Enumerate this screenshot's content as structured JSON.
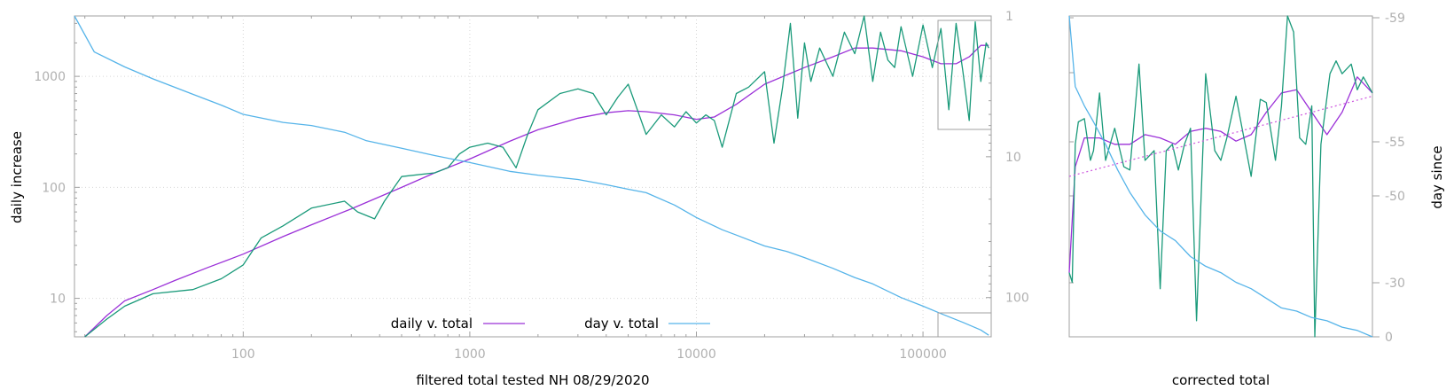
{
  "chart_data": [
    {
      "type": "line",
      "title": "",
      "xlabel": "filtered total tested NH 08/29/2020",
      "ylabel": "daily increase",
      "y2label": "",
      "x_scale": "log",
      "y_scale": "log",
      "y2_scale": "log-reversed",
      "xlim": [
        18,
        200000
      ],
      "ylim": [
        4.5,
        3500
      ],
      "y2lim": [
        1,
        190
      ],
      "x_ticks": [
        "100",
        "1000",
        "10000",
        "100000"
      ],
      "x_tick_values": [
        100,
        1000,
        10000,
        100000
      ],
      "y_ticks": [
        "10",
        "100",
        "1000"
      ],
      "y_tick_values": [
        10,
        100,
        1000
      ],
      "y2_ticks": [
        "1",
        "10",
        "100"
      ],
      "y2_tick_values": [
        1,
        10,
        100
      ],
      "grid": true,
      "legend_position": "bottom-center",
      "series": [
        {
          "name": "daily v. total",
          "color": "#9b30d8",
          "axis": "left",
          "x": [
            20,
            25,
            30,
            40,
            50,
            70,
            100,
            150,
            200,
            300,
            500,
            700,
            1000,
            1500,
            2000,
            3000,
            4000,
            5000,
            6000,
            8000,
            10000,
            12000,
            15000,
            20000,
            30000,
            40000,
            50000,
            60000,
            80000,
            100000,
            120000,
            140000,
            160000,
            180000,
            195000
          ],
          "values": [
            4.2,
            7,
            9.5,
            12,
            14.5,
            19,
            25,
            36,
            46,
            64,
            100,
            135,
            180,
            260,
            330,
            420,
            470,
            490,
            480,
            450,
            410,
            430,
            560,
            850,
            1200,
            1500,
            1800,
            1800,
            1700,
            1500,
            1300,
            1300,
            1500,
            1900,
            1900
          ]
        },
        {
          "name": "",
          "color": "#1a9a7a",
          "axis": "left",
          "x": [
            20,
            25,
            30,
            40,
            60,
            80,
            100,
            120,
            150,
            200,
            280,
            320,
            380,
            420,
            500,
            700,
            800,
            900,
            1000,
            1200,
            1400,
            1600,
            1800,
            2000,
            2500,
            3000,
            3500,
            4000,
            4500,
            5000,
            6000,
            7000,
            8000,
            9000,
            10000,
            11000,
            12000,
            13000,
            15000,
            17000,
            20000,
            22000,
            24000,
            26000,
            28000,
            30000,
            32000,
            35000,
            40000,
            45000,
            50000,
            55000,
            60000,
            65000,
            70000,
            75000,
            80000,
            90000,
            100000,
            110000,
            120000,
            130000,
            140000,
            150000,
            160000,
            170000,
            180000,
            190000,
            195000
          ],
          "values": [
            4.2,
            6.5,
            8.5,
            11,
            12,
            15,
            20,
            35,
            45,
            65,
            75,
            60,
            52,
            75,
            125,
            135,
            150,
            200,
            230,
            250,
            230,
            150,
            300,
            500,
            700,
            770,
            700,
            450,
            650,
            850,
            300,
            450,
            350,
            480,
            380,
            450,
            400,
            230,
            700,
            800,
            1100,
            250,
            800,
            3000,
            420,
            2000,
            900,
            1800,
            1000,
            2500,
            1600,
            3500,
            900,
            2500,
            1400,
            1200,
            2800,
            1000,
            2900,
            1200,
            2700,
            500,
            3000,
            1100,
            400,
            3100,
            900,
            2000,
            1800
          ]
        },
        {
          "name": "day v. total",
          "color": "#56b4e9",
          "axis": "right",
          "x": [
            18,
            22,
            30,
            40,
            60,
            80,
            100,
            150,
            200,
            280,
            350,
            500,
            700,
            1000,
            1500,
            2000,
            3000,
            4000,
            5000,
            6000,
            8000,
            10000,
            13000,
            15000,
            20000,
            25000,
            30000,
            40000,
            50000,
            60000,
            80000,
            100000,
            120000,
            150000,
            180000,
            195000
          ],
          "values": [
            1,
            1.8,
            2.3,
            2.8,
            3.6,
            4.3,
            5,
            5.7,
            6,
            6.7,
            7.7,
            8.7,
            9.8,
            11,
            12.7,
            13.5,
            14.5,
            15.8,
            17,
            18,
            22,
            27,
            33,
            36,
            43,
            47,
            52,
            62,
            72,
            80,
            100,
            115,
            130,
            150,
            170,
            185
          ]
        }
      ]
    },
    {
      "type": "line",
      "title": "",
      "xlabel": "corrected total",
      "ylabel": "",
      "y2label": "day since",
      "y2_ticks": [
        "-59",
        "-55",
        "-50",
        "-30",
        "0"
      ],
      "y2_tick_values": [
        -59,
        -55,
        -50,
        -30,
        0
      ],
      "grid": false,
      "series": [
        {
          "name": "",
          "color": "#9b30d8",
          "x": [
            0,
            0.02,
            0.05,
            0.1,
            0.15,
            0.2,
            0.25,
            0.3,
            0.35,
            0.4,
            0.45,
            0.5,
            0.55,
            0.6,
            0.65,
            0.7,
            0.75,
            0.8,
            0.85,
            0.9,
            0.95,
            1.0
          ],
          "values": [
            0.2,
            0.53,
            0.62,
            0.62,
            0.6,
            0.6,
            0.63,
            0.62,
            0.6,
            0.64,
            0.65,
            0.64,
            0.61,
            0.63,
            0.7,
            0.76,
            0.77,
            0.7,
            0.63,
            0.7,
            0.81,
            0.76
          ]
        },
        {
          "name": "",
          "color": "#1a9a7a",
          "x": [
            0,
            0.01,
            0.02,
            0.03,
            0.05,
            0.07,
            0.08,
            0.1,
            0.12,
            0.15,
            0.18,
            0.2,
            0.23,
            0.25,
            0.28,
            0.3,
            0.32,
            0.34,
            0.36,
            0.38,
            0.4,
            0.42,
            0.45,
            0.48,
            0.5,
            0.52,
            0.55,
            0.58,
            0.6,
            0.63,
            0.65,
            0.68,
            0.7,
            0.72,
            0.74,
            0.76,
            0.78,
            0.8,
            0.81,
            0.83,
            0.86,
            0.88,
            0.9,
            0.93,
            0.95,
            0.97,
            1.0
          ],
          "values": [
            0.2,
            0.17,
            0.6,
            0.67,
            0.68,
            0.55,
            0.58,
            0.76,
            0.55,
            0.65,
            0.53,
            0.52,
            0.85,
            0.55,
            0.58,
            0.15,
            0.58,
            0.6,
            0.52,
            0.6,
            0.65,
            0.05,
            0.82,
            0.58,
            0.55,
            0.62,
            0.75,
            0.6,
            0.5,
            0.74,
            0.73,
            0.55,
            0.72,
            1.0,
            0.95,
            0.62,
            0.6,
            0.72,
            0.0,
            0.6,
            0.82,
            0.86,
            0.82,
            0.85,
            0.77,
            0.81,
            0.76
          ]
        },
        {
          "name": "",
          "color": "#56b4e9",
          "x": [
            0,
            0.02,
            0.05,
            0.08,
            0.12,
            0.16,
            0.2,
            0.25,
            0.3,
            0.35,
            0.4,
            0.45,
            0.5,
            0.55,
            0.6,
            0.65,
            0.7,
            0.75,
            0.8,
            0.85,
            0.9,
            0.95,
            1.0
          ],
          "values": [
            1.0,
            0.78,
            0.72,
            0.67,
            0.6,
            0.52,
            0.45,
            0.38,
            0.33,
            0.3,
            0.25,
            0.22,
            0.2,
            0.17,
            0.15,
            0.12,
            0.09,
            0.08,
            0.06,
            0.05,
            0.03,
            0.02,
            0.0
          ]
        },
        {
          "name": "",
          "color": "#d060e0",
          "dashed": true,
          "x": [
            0,
            1
          ],
          "values": [
            0.5,
            0.75
          ]
        }
      ]
    }
  ],
  "legend": {
    "daily_label": "daily v. total",
    "day_label": "day v. total"
  }
}
